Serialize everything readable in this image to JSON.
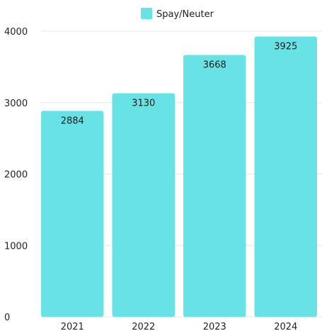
{
  "chart_data": {
    "type": "bar",
    "categories": [
      "2021",
      "2022",
      "2023",
      "2024"
    ],
    "series": [
      {
        "name": "Spay/Neuter",
        "values": [
          2884,
          3130,
          3668,
          3925
        ],
        "color": "#67e3e6"
      }
    ],
    "ylim": [
      0,
      4000
    ],
    "yticks": [
      0,
      1000,
      2000,
      3000,
      4000
    ],
    "grid": true,
    "legend": "top-center",
    "data_labels": true
  }
}
